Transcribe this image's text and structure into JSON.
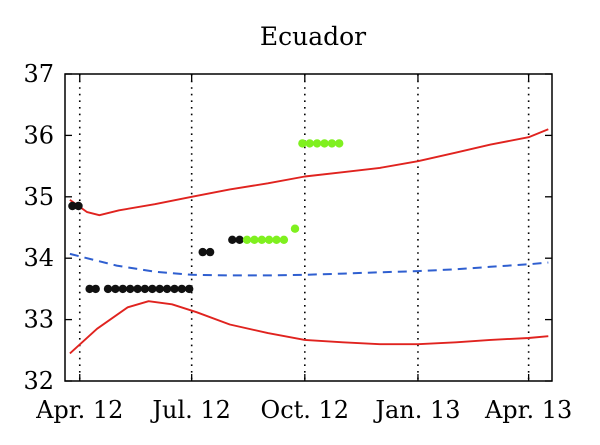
{
  "chart_data": {
    "type": "line",
    "title": "Ecuador",
    "xlabel": "",
    "ylabel": "",
    "x_ticks": [
      {
        "label": "Apr. 12",
        "date": "2012-04-01"
      },
      {
        "label": "Jul. 12",
        "date": "2012-07-01"
      },
      {
        "label": "Oct. 12",
        "date": "2012-10-01"
      },
      {
        "label": "Jan. 13",
        "date": "2013-01-01"
      },
      {
        "label": "Apr. 13",
        "date": "2013-04-01"
      }
    ],
    "xlim": [
      "2012-03-20",
      "2013-04-20"
    ],
    "y_ticks": [
      32,
      33,
      34,
      35,
      36,
      37
    ],
    "ylim": [
      32,
      37
    ],
    "grid": "vertical dotted lines at x ticks",
    "series": [
      {
        "color": "#e0231f",
        "style": "solid",
        "points": [
          [
            "2012-03-24",
            34.95
          ],
          [
            "2012-04-07",
            34.75
          ],
          [
            "2012-04-17",
            34.7
          ],
          [
            "2012-05-03",
            34.78
          ],
          [
            "2012-06-01",
            34.88
          ],
          [
            "2012-07-01",
            35.0
          ],
          [
            "2012-08-01",
            35.12
          ],
          [
            "2012-09-01",
            35.22
          ],
          [
            "2012-10-01",
            35.33
          ],
          [
            "2012-11-01",
            35.4
          ],
          [
            "2012-12-01",
            35.47
          ],
          [
            "2013-01-01",
            35.58
          ],
          [
            "2013-02-01",
            35.72
          ],
          [
            "2013-03-01",
            35.85
          ],
          [
            "2013-04-01",
            35.97
          ],
          [
            "2013-04-17",
            36.1
          ]
        ]
      },
      {
        "color": "#e0231f",
        "style": "solid",
        "points": [
          [
            "2012-03-24",
            32.45
          ],
          [
            "2012-04-15",
            32.85
          ],
          [
            "2012-05-10",
            33.2
          ],
          [
            "2012-05-27",
            33.3
          ],
          [
            "2012-06-15",
            33.25
          ],
          [
            "2012-07-05",
            33.12
          ],
          [
            "2012-08-01",
            32.92
          ],
          [
            "2012-09-01",
            32.78
          ],
          [
            "2012-10-01",
            32.67
          ],
          [
            "2012-11-01",
            32.63
          ],
          [
            "2012-12-01",
            32.6
          ],
          [
            "2013-01-01",
            32.6
          ],
          [
            "2013-02-01",
            32.63
          ],
          [
            "2013-03-01",
            32.67
          ],
          [
            "2013-04-01",
            32.7
          ],
          [
            "2013-04-17",
            32.73
          ]
        ]
      },
      {
        "color": "#2f5fd0",
        "style": "dashed",
        "points": [
          [
            "2012-03-24",
            34.07
          ],
          [
            "2012-05-01",
            33.88
          ],
          [
            "2012-06-01",
            33.78
          ],
          [
            "2012-07-01",
            33.73
          ],
          [
            "2012-08-01",
            33.72
          ],
          [
            "2012-09-01",
            33.72
          ],
          [
            "2012-10-01",
            33.73
          ],
          [
            "2012-11-01",
            33.75
          ],
          [
            "2012-12-01",
            33.77
          ],
          [
            "2013-01-01",
            33.79
          ],
          [
            "2013-02-01",
            33.82
          ],
          [
            "2013-03-01",
            33.86
          ],
          [
            "2013-04-01",
            33.9
          ],
          [
            "2013-04-17",
            33.93
          ]
        ]
      }
    ],
    "point_series": [
      {
        "color": "#111111",
        "points": [
          [
            "2012-03-26",
            34.85
          ],
          [
            "2012-03-31",
            34.85
          ],
          [
            "2012-04-09",
            33.5
          ],
          [
            "2012-04-14",
            33.5
          ],
          [
            "2012-04-24",
            33.5
          ],
          [
            "2012-04-30",
            33.5
          ],
          [
            "2012-05-06",
            33.5
          ],
          [
            "2012-05-12",
            33.5
          ],
          [
            "2012-05-18",
            33.5
          ],
          [
            "2012-05-24",
            33.5
          ],
          [
            "2012-05-30",
            33.5
          ],
          [
            "2012-06-05",
            33.5
          ],
          [
            "2012-06-11",
            33.5
          ],
          [
            "2012-06-17",
            33.5
          ],
          [
            "2012-06-23",
            33.5
          ],
          [
            "2012-06-29",
            33.5
          ],
          [
            "2012-07-10",
            34.1
          ],
          [
            "2012-07-16",
            34.1
          ],
          [
            "2012-08-03",
            34.3
          ],
          [
            "2012-08-09",
            34.3
          ]
        ]
      },
      {
        "color": "#7ff01f",
        "points": [
          [
            "2012-08-15",
            34.3
          ],
          [
            "2012-08-21",
            34.3
          ],
          [
            "2012-08-27",
            34.3
          ],
          [
            "2012-09-02",
            34.3
          ],
          [
            "2012-09-08",
            34.3
          ],
          [
            "2012-09-14",
            34.3
          ],
          [
            "2012-09-23",
            34.48
          ],
          [
            "2012-09-29",
            35.87
          ],
          [
            "2012-10-05",
            35.87
          ],
          [
            "2012-10-11",
            35.87
          ],
          [
            "2012-10-17",
            35.87
          ],
          [
            "2012-10-23",
            35.87
          ],
          [
            "2012-10-29",
            35.87
          ]
        ]
      }
    ]
  }
}
